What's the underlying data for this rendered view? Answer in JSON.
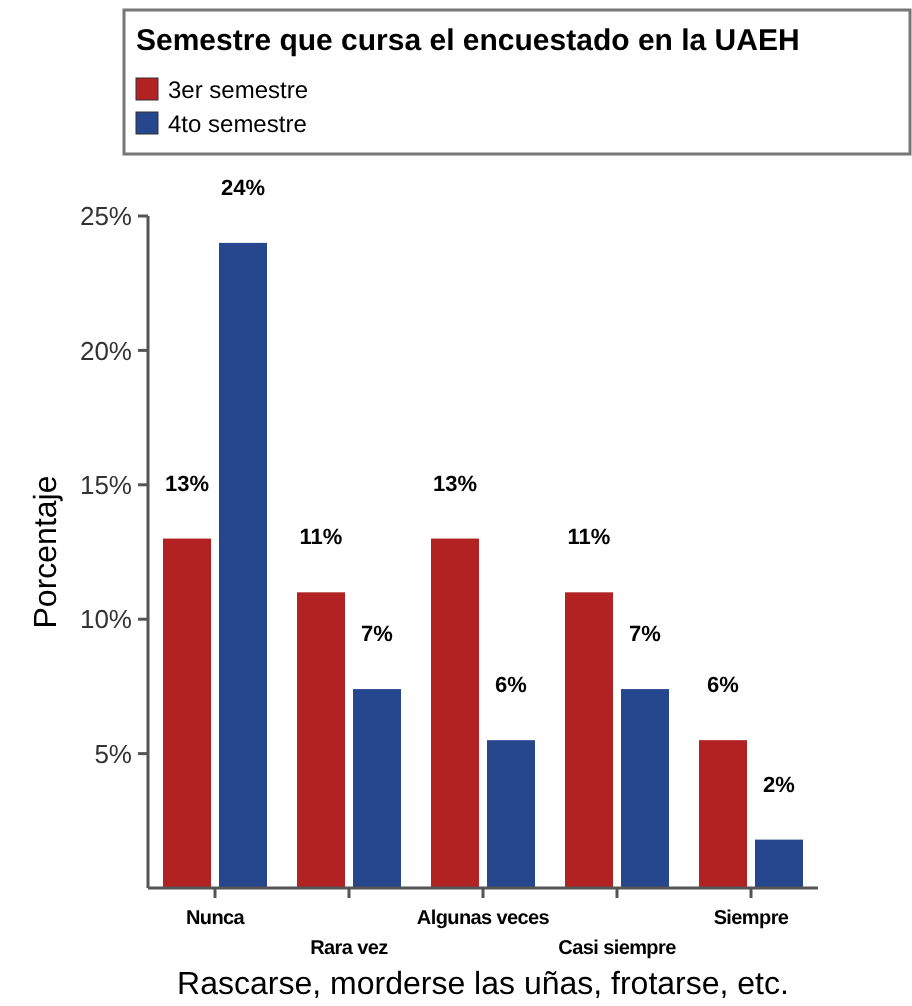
{
  "chart_data": {
    "type": "bar",
    "legend_title": "Semestre que cursa el encuestado en la UAEH",
    "xlabel": "Rascarse, morderse las uñas, frotarse, etc.",
    "ylabel": "Porcentaje",
    "categories": [
      "Nunca",
      "Rara vez",
      "Algunas veces",
      "Casi siempre",
      "Siempre"
    ],
    "series": [
      {
        "name": "3er semestre",
        "color": "#b22222",
        "values": [
          13,
          11,
          13,
          11,
          5.5
        ],
        "value_labels": [
          "13%",
          "11%",
          "13%",
          "11%",
          "6%"
        ]
      },
      {
        "name": "4to semestre",
        "color": "#26478e",
        "values": [
          24,
          7.4,
          5.5,
          7.4,
          1.8
        ],
        "value_labels": [
          "24%",
          "7%",
          "6%",
          "7%",
          "2%"
        ]
      }
    ],
    "ylim": [
      0,
      25
    ],
    "yticks": [
      {
        "value": 5,
        "label": "5%"
      },
      {
        "value": 10,
        "label": "10%"
      },
      {
        "value": 15,
        "label": "15%"
      },
      {
        "value": 20,
        "label": "20%"
      },
      {
        "value": 25,
        "label": "25%"
      }
    ],
    "grid": false,
    "legend": "top"
  }
}
